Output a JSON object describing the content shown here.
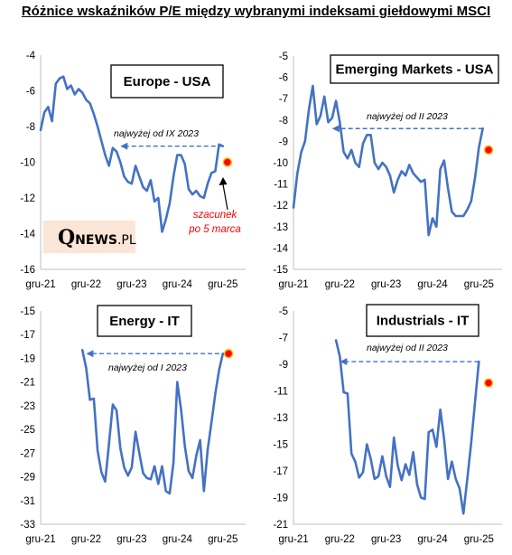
{
  "title": "Różnice wskaźników P/E między wybranymi indeksami giełdowymi MSCI",
  "logo": {
    "q": "Q",
    "name": "NEWS",
    "suffix": ".PL"
  },
  "accent_color": "#4472c4",
  "estimate_color": "#ff0000",
  "chart_data": [
    {
      "type": "line",
      "title": "Europe - USA",
      "x_ticks": [
        "gru-21",
        "gru-22",
        "gru-23",
        "gru-24",
        "gru-25"
      ],
      "ylim": [
        -16,
        -4
      ],
      "y_ticks": [
        "-4",
        "-6",
        "-8",
        "-10",
        "-12",
        "-14",
        "-16"
      ],
      "grid": false,
      "series": [
        {
          "x": [
            0,
            1,
            2,
            3,
            4,
            5,
            6,
            7,
            8,
            9,
            10,
            11,
            12,
            13,
            14,
            15,
            16,
            17,
            18,
            19,
            20,
            21,
            22,
            23,
            24,
            25,
            26,
            27,
            28,
            29,
            30,
            31,
            32,
            33,
            34,
            35,
            36,
            37,
            38,
            39,
            40,
            41,
            42,
            43,
            44,
            45,
            46,
            47,
            48
          ],
          "values": [
            -8.2,
            -7.2,
            -6.9,
            -7.7,
            -5.6,
            -5.3,
            -5.2,
            -5.9,
            -5.7,
            -6.2,
            -5.9,
            -6.1,
            -6.5,
            -6.7,
            -7.3,
            -8.0,
            -8.8,
            -9.6,
            -10.2,
            -9.2,
            -9.4,
            -10.0,
            -10.8,
            -11.1,
            -11.2,
            -10.2,
            -10.8,
            -11.4,
            -11.6,
            -11.0,
            -12.2,
            -12.0,
            -13.9,
            -13.2,
            -12.3,
            -10.8,
            -9.6,
            -9.6,
            -10.1,
            -11.5,
            -11.8,
            -11.6,
            -11.9,
            -12.0,
            -11.2,
            -10.6,
            -10.5,
            -9.0,
            -9.1
          ]
        }
      ],
      "reference": {
        "label": "najwyżej od IX 2023",
        "value": -9.1,
        "from_x": 21.0
      },
      "estimate": {
        "x": 49.2,
        "value": -10.0
      },
      "note": [
        "szacunek",
        "po 5 marca"
      ]
    },
    {
      "type": "line",
      "title": "Emerging Markets - USA",
      "x_ticks": [
        "gru-21",
        "gru-22",
        "gru-23",
        "gru-24",
        "gru-25"
      ],
      "ylim": [
        -15,
        -5
      ],
      "y_ticks": [
        "-5",
        "-6",
        "-7",
        "-8",
        "-9",
        "-10",
        "-11",
        "-12",
        "-13",
        "-14",
        "-15"
      ],
      "grid": false,
      "series": [
        {
          "x": [
            0,
            1,
            2,
            3,
            4,
            5,
            6,
            7,
            8,
            9,
            10,
            11,
            12,
            13,
            14,
            15,
            16,
            17,
            18,
            19,
            20,
            21,
            22,
            23,
            24,
            25,
            26,
            27,
            28,
            29,
            30,
            31,
            32,
            33,
            34,
            35,
            36,
            37,
            38,
            39,
            40,
            41,
            42,
            43,
            44,
            45,
            46,
            47,
            48,
            49
          ],
          "values": [
            -12.1,
            -10.5,
            -9.5,
            -9.0,
            -7.5,
            -6.4,
            -8.2,
            -7.8,
            -6.9,
            -8.1,
            -7.9,
            -7.1,
            -8.1,
            -9.5,
            -9.8,
            -9.4,
            -10.0,
            -10.2,
            -9.1,
            -8.7,
            -8.7,
            -10.0,
            -10.3,
            -10.0,
            -10.2,
            -10.6,
            -11.4,
            -10.8,
            -10.4,
            -10.6,
            -10.1,
            -10.5,
            -10.7,
            -10.9,
            -10.8,
            -13.4,
            -12.6,
            -13.0,
            -10.3,
            -9.9,
            -11.2,
            -12.3,
            -12.5,
            -12.5,
            -12.5,
            -12.2,
            -11.8,
            -10.7,
            -9.3,
            -8.4
          ]
        }
      ],
      "reference": {
        "label": "najwyżej od II 2023",
        "value": -8.4,
        "from_x": 10.0
      },
      "estimate": {
        "x": 50.5,
        "value": -9.4
      }
    },
    {
      "type": "line",
      "title": "Energy - IT",
      "x_ticks": [
        "gru-21",
        "gru-22",
        "gru-23",
        "gru-24",
        "gru-25"
      ],
      "ylim": [
        -33,
        -15
      ],
      "y_ticks": [
        "-15",
        "-17",
        "-19",
        "-21",
        "-23",
        "-25",
        "-27",
        "-29",
        "-31",
        "-33"
      ],
      "grid": false,
      "series": [
        {
          "x": [
            11,
            12,
            13,
            14,
            15,
            16,
            17,
            18,
            19,
            20,
            21,
            22,
            23,
            24,
            25,
            26,
            27,
            28,
            29,
            30,
            31,
            32,
            33,
            34,
            35,
            36,
            37,
            38,
            39,
            40,
            41,
            42,
            43,
            44,
            45,
            46,
            47,
            48,
            49
          ],
          "values": [
            -18.3,
            -19.8,
            -22.5,
            -22.4,
            -26.8,
            -28.6,
            -29.4,
            -26.2,
            -22.9,
            -23.4,
            -26.6,
            -28.2,
            -28.9,
            -28.2,
            -25.2,
            -27.0,
            -28.7,
            -29.1,
            -29.2,
            -28.1,
            -29.6,
            -28.1,
            -30.2,
            -30.4,
            -27.8,
            -21.0,
            -23.3,
            -26.4,
            -28.5,
            -29.1,
            -27.2,
            -25.9,
            -30.2,
            -26.7,
            -24.4,
            -22.0,
            -20.0,
            -18.6,
            -18.7
          ]
        }
      ],
      "reference": {
        "label": "najwyżej od I 2023",
        "value": -18.6,
        "from_x": 12.0
      },
      "estimate": {
        "x": 49.5,
        "value": -18.6
      }
    },
    {
      "type": "line",
      "title": "Industrials - IT",
      "x_ticks": [
        "gru-21",
        "gru-22",
        "gru-23",
        "gru-24",
        "gru-25"
      ],
      "ylim": [
        -21,
        -5
      ],
      "y_ticks": [
        "-5",
        "-7",
        "-9",
        "-11",
        "-13",
        "-15",
        "-17",
        "-19",
        "-21"
      ],
      "grid": false,
      "series": [
        {
          "x": [
            11,
            12,
            13,
            14,
            15,
            16,
            17,
            18,
            19,
            20,
            21,
            22,
            23,
            24,
            25,
            26,
            27,
            28,
            29,
            30,
            31,
            32,
            33,
            34,
            35,
            36,
            37,
            38,
            39,
            40,
            41,
            42,
            43,
            44,
            45,
            46,
            47,
            48
          ],
          "values": [
            -7.2,
            -8.4,
            -11.1,
            -11.2,
            -15.7,
            -16.3,
            -17.5,
            -17.1,
            -15.0,
            -16.1,
            -17.6,
            -17.4,
            -15.9,
            -17.4,
            -18.2,
            -14.5,
            -16.6,
            -17.7,
            -16.5,
            -17.3,
            -15.6,
            -18.0,
            -19.0,
            -19.1,
            -14.1,
            -13.9,
            -15.2,
            -12.4,
            -14.6,
            -17.6,
            -16.3,
            -17.6,
            -18.3,
            -20.2,
            -17.6,
            -14.9,
            -11.8,
            -8.8
          ]
        }
      ],
      "reference": {
        "label": "najwyżej od II 2023",
        "value": -8.8,
        "from_x": 12.0
      },
      "estimate": {
        "x": 50.5,
        "value": -10.4
      }
    }
  ]
}
